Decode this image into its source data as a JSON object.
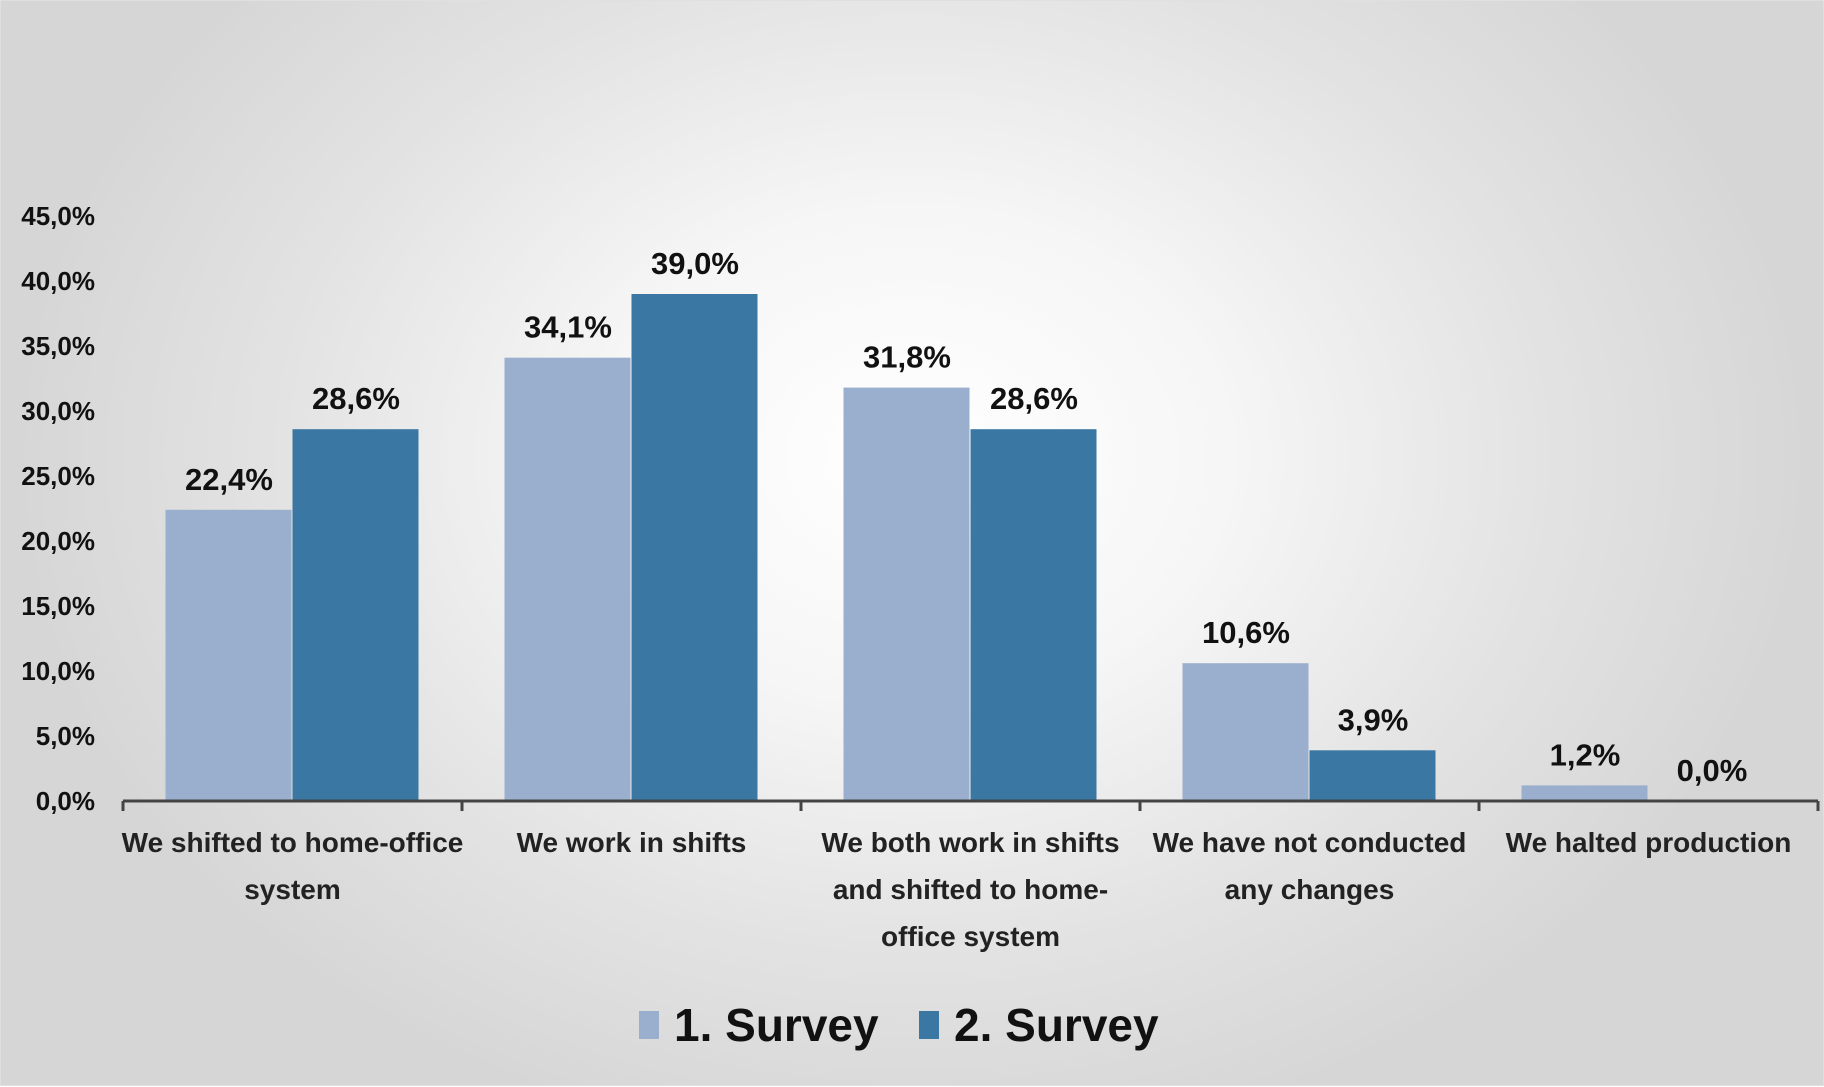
{
  "chart_data": {
    "type": "bar",
    "categories": [
      [
        "We shifted to home-office",
        "system"
      ],
      [
        "We work in shifts"
      ],
      [
        "We both work in shifts",
        "and shifted to home-",
        "office system"
      ],
      [
        "We have not conducted",
        "any changes"
      ],
      [
        "We halted production"
      ]
    ],
    "series": [
      {
        "name": "1. Survey",
        "color": "#9aafcd",
        "values": [
          22.4,
          34.1,
          31.8,
          10.6,
          1.2
        ],
        "labels": [
          "22,4%",
          "34,1%",
          "31,8%",
          "10,6%",
          "1,2%"
        ]
      },
      {
        "name": "2. Survey",
        "color": "#3a77a3",
        "values": [
          28.6,
          39.0,
          28.6,
          3.9,
          0.0
        ],
        "labels": [
          "28,6%",
          "39,0%",
          "28,6%",
          "3,9%",
          "0,0%"
        ]
      }
    ],
    "yticks": [
      "0,0%",
      "5,0%",
      "10,0%",
      "15,0%",
      "20,0%",
      "25,0%",
      "30,0%",
      "35,0%",
      "40,0%",
      "45,0%"
    ],
    "ylim": [
      0,
      45
    ],
    "grid": false,
    "legend_position": "bottom"
  }
}
